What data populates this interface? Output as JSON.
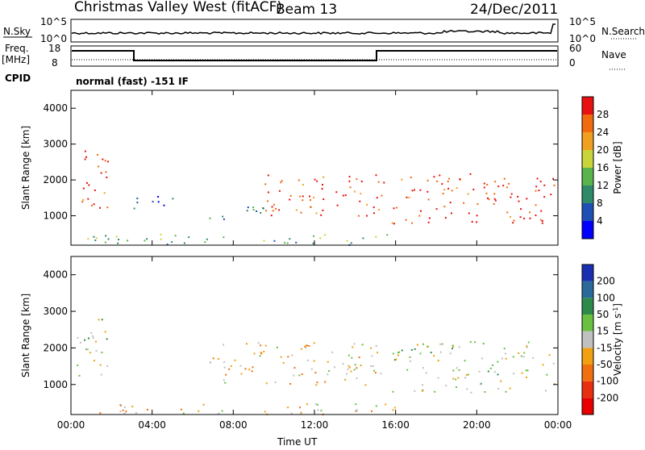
{
  "header": {
    "title": "Christmas Valley West (fitACF)",
    "beam": "Beam 13",
    "date": "24/Dec/2011"
  },
  "strips": {
    "nsky_label": "N.Sky",
    "nsky_ticks": [
      "10^5",
      "10^0"
    ],
    "nsearch_label": "N.Search",
    "nsearch_ticks": [
      "10^5",
      "10^0"
    ],
    "freq_label": "Freq.",
    "freq_unit": "[MHz]",
    "freq_ticks": [
      "18",
      "8"
    ],
    "nave_label": "Nave",
    "nave_ticks": [
      "60",
      "0"
    ],
    "cpid_label": "CPID",
    "cpid_text": "normal (fast) -151 IF"
  },
  "chart_data": [
    {
      "type": "heatmap",
      "name": "power-panel",
      "ylabel": "Slant Range [km]",
      "xlabel": "",
      "x_ticks": [
        "00:00",
        "04:00",
        "08:00",
        "12:00",
        "16:00",
        "20:00",
        "00:00"
      ],
      "y_ticks": [
        "1000",
        "2000",
        "3000",
        "4000"
      ],
      "xlim_hours": [
        0,
        24
      ],
      "ylim_km": [
        180,
        4500
      ],
      "colorbar": {
        "label": "Power [dB]",
        "ticks": [
          "4",
          "8",
          "12",
          "16",
          "20",
          "24",
          "28"
        ],
        "colors": [
          "#0000ff",
          "#1f4fb5",
          "#2f8a6a",
          "#58b44b",
          "#c8d43a",
          "#f0a020",
          "#f06a10",
          "#e81010"
        ]
      },
      "regions": [
        {
          "x0": 0.2,
          "x1": 1.8,
          "y0": 1200,
          "y1": 2900,
          "level": 7
        },
        {
          "x0": 3.0,
          "x1": 5.0,
          "y0": 1100,
          "y1": 1600,
          "level": 1
        },
        {
          "x0": 6.8,
          "x1": 9.5,
          "y0": 900,
          "y1": 1400,
          "level": 2
        },
        {
          "x0": 9.5,
          "x1": 15.5,
          "y0": 1000,
          "y1": 2200,
          "level": 7
        },
        {
          "x0": 15.8,
          "x1": 23.8,
          "y0": 800,
          "y1": 2200,
          "level": 7
        },
        {
          "x0": 0.5,
          "x1": 16.0,
          "y0": 200,
          "y1": 500,
          "level": 3
        }
      ]
    },
    {
      "type": "heatmap",
      "name": "velocity-panel",
      "ylabel": "Slant Range [km]",
      "xlabel": "Time UT",
      "x_ticks": [
        "00:00",
        "04:00",
        "08:00",
        "12:00",
        "16:00",
        "20:00",
        "00:00"
      ],
      "y_ticks": [
        "1000",
        "2000",
        "3000",
        "4000"
      ],
      "xlim_hours": [
        0,
        24
      ],
      "ylim_km": [
        180,
        4500
      ],
      "colorbar": {
        "label": "Velocity [m s",
        "label_sup": "-1",
        "label_end": "]",
        "ticks": [
          "200",
          "100",
          "50",
          "15",
          "-15",
          "-50",
          "-100",
          "-200"
        ],
        "colors": [
          "#1a2fb0",
          "#2a6a9a",
          "#2e8a4a",
          "#6ac040",
          "#c0c0c0",
          "#f0a010",
          "#f07010",
          "#e83010",
          "#e80000"
        ]
      },
      "regions": [
        {
          "x0": 0.2,
          "x1": 1.8,
          "y0": 1200,
          "y1": 2900,
          "level": 4
        },
        {
          "x0": 6.8,
          "x1": 15.5,
          "y0": 1000,
          "y1": 2200,
          "level": 5
        },
        {
          "x0": 15.8,
          "x1": 23.8,
          "y0": 800,
          "y1": 2200,
          "level": 4
        },
        {
          "x0": 0.5,
          "x1": 16.0,
          "y0": 200,
          "y1": 500,
          "level": 5
        }
      ]
    }
  ]
}
